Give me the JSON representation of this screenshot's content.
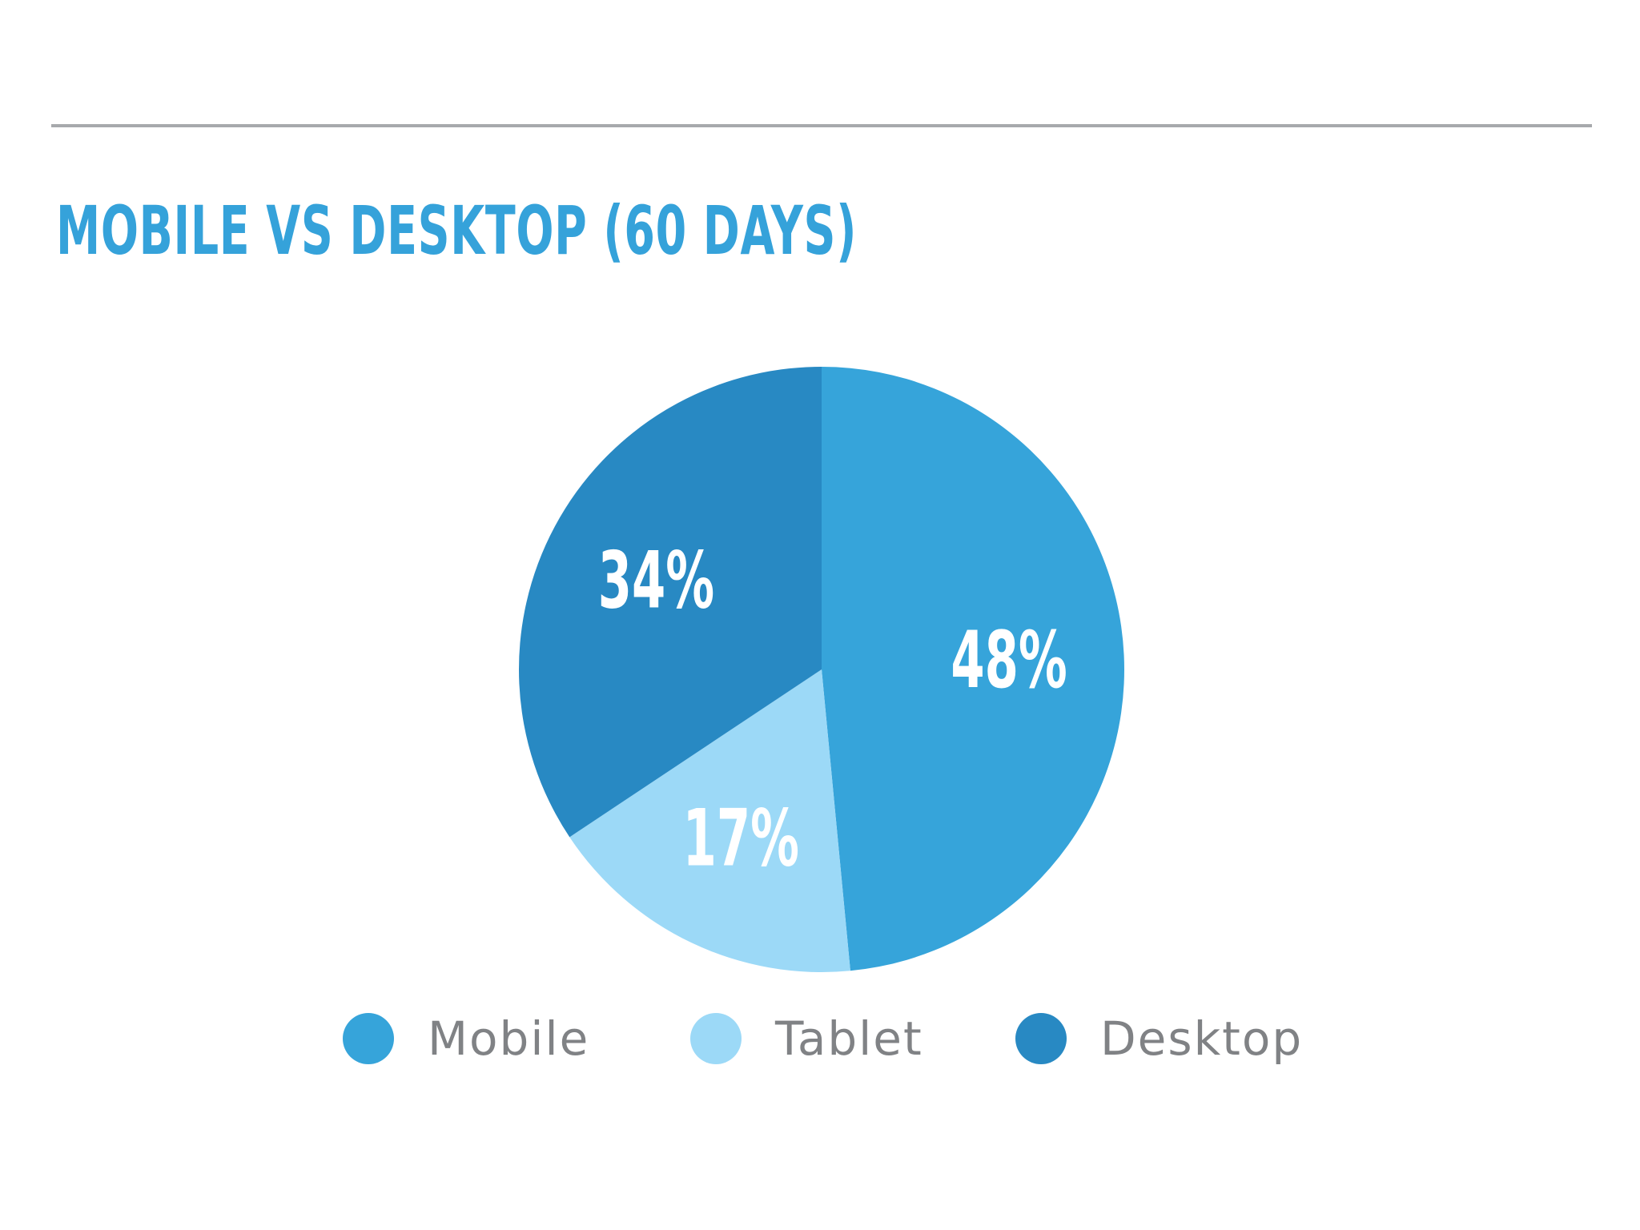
{
  "chart_data": {
    "type": "pie",
    "title": "MOBILE VS DESKTOP (60 DAYS)",
    "slices": [
      {
        "name": "Mobile",
        "value": 48,
        "label": "48%",
        "color": "#36a4da"
      },
      {
        "name": "Tablet",
        "value": 17,
        "label": "17%",
        "color": "#9cd9f7"
      },
      {
        "name": "Desktop",
        "value": 34,
        "label": "34%",
        "color": "#2889c3"
      }
    ],
    "legend": {
      "placement": "bottom",
      "entries": [
        "Mobile",
        "Tablet",
        "Desktop"
      ]
    }
  }
}
